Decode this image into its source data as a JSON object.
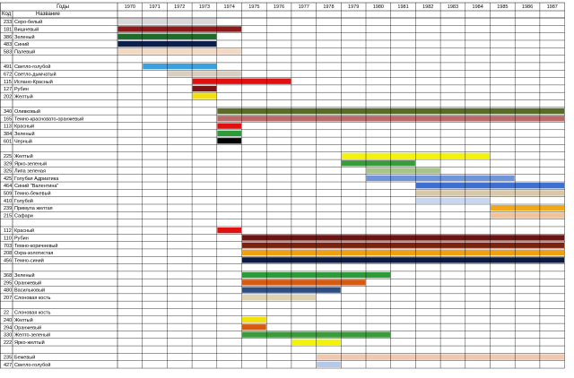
{
  "header": {
    "years_label": "Годы",
    "code_label": "Код",
    "name_label": "Название"
  },
  "years": [
    "1970",
    "1971",
    "1972",
    "1973",
    "1974",
    "1975",
    "1976",
    "1977",
    "1978",
    "1979",
    "1980",
    "1981",
    "1982",
    "1983",
    "1984",
    "1985",
    "1986",
    "1987"
  ],
  "rows": [
    {
      "code": "233",
      "name": "Серо-белый",
      "color": "#d9d9d9",
      "start": 1970,
      "end": 1973
    },
    {
      "code": "181",
      "name": "Вишневый",
      "color": "#8b1a1a",
      "start": 1970,
      "end": 1974
    },
    {
      "code": "386",
      "name": "Зеленый",
      "color": "#1e6b2a",
      "start": 1970,
      "end": 1973
    },
    {
      "code": "483",
      "name": "Синий",
      "color": "#0d1f4d",
      "start": 1970,
      "end": 1973
    },
    {
      "code": "583",
      "name": "Палевый",
      "color": "#f3d9c4",
      "start": 1970,
      "end": 1974
    },
    {
      "code": "",
      "name": ""
    },
    {
      "code": "491",
      "name": "Светло-голубой",
      "color": "#3aa0e0",
      "start": 1971,
      "end": 1973
    },
    {
      "code": "672",
      "name": "Светло-дымчатый",
      "color": "#d8cfc0",
      "start": 1972,
      "end": 1974
    },
    {
      "code": "115",
      "name": "Испано-Красный",
      "color": "#e01010",
      "start": 1973,
      "end": 1976
    },
    {
      "code": "127",
      "name": "Рубин",
      "color": "#7a1414",
      "start": 1973,
      "end": 1973
    },
    {
      "code": "202",
      "name": "Желтый",
      "color": "#f2e20a",
      "start": 1973,
      "end": 1973
    },
    {
      "code": "",
      "name": ""
    },
    {
      "code": "340",
      "name": "Оливковый",
      "color": "#5b6b2a",
      "start": 1974,
      "end": 1987
    },
    {
      "code": "165",
      "name": "Темно-красновато-оранжевый",
      "color": "#b96a6a",
      "start": 1974,
      "end": 1987
    },
    {
      "code": "113",
      "name": "Красный",
      "color": "#e01010",
      "start": 1974,
      "end": 1974
    },
    {
      "code": "384",
      "name": "Зеленый",
      "color": "#2e9b3a",
      "start": 1974,
      "end": 1974
    },
    {
      "code": "601",
      "name": "Черный",
      "color": "#000000",
      "start": 1974,
      "end": 1974
    },
    {
      "code": "",
      "name": ""
    },
    {
      "code": "225",
      "name": "Желтый",
      "color": "#f2f20a",
      "start": 1979,
      "end": 1984
    },
    {
      "code": "329",
      "name": "Ярко-зеленый",
      "color": "#3a9b3a",
      "start": 1979,
      "end": 1981
    },
    {
      "code": "325",
      "name": "Липа зеленая",
      "color": "#a9c48a",
      "start": 1980,
      "end": 1982
    },
    {
      "code": "425",
      "name": "Голубая Адриатика",
      "color": "#6f95d8",
      "start": 1980,
      "end": 1985
    },
    {
      "code": "464",
      "name": "Синий \"Валентина\"",
      "color": "#3c6fd0",
      "start": 1982,
      "end": 1987
    },
    {
      "code": "509",
      "name": "Темно-бежевый",
      "color": "#d9c8a8",
      "start": 1982,
      "end": 1987
    },
    {
      "code": "410",
      "name": "Голубой",
      "color": "#c9d6f0",
      "start": 1982,
      "end": 1984
    },
    {
      "code": "239",
      "name": "Примула желтая",
      "color": "#f0a818",
      "start": 1985,
      "end": 1987
    },
    {
      "code": "215",
      "name": "Сафари",
      "color": "#f0c49a",
      "start": 1985,
      "end": 1987
    },
    {
      "code": "",
      "name": ""
    },
    {
      "code": "112",
      "name": "Красный",
      "color": "#e01010",
      "start": 1974,
      "end": 1974
    },
    {
      "code": "110",
      "name": "Рубин",
      "color": "#6b1414",
      "start": 1975,
      "end": 1987
    },
    {
      "code": "703",
      "name": "Темно-коричневый",
      "color": "#7a2410",
      "start": 1975,
      "end": 1987
    },
    {
      "code": "208",
      "name": "Охра-золотистая",
      "color": "#f0a010",
      "start": 1975,
      "end": 1987
    },
    {
      "code": "456",
      "name": "Темно-синий",
      "color": "#0d1a40",
      "start": 1975,
      "end": 1987
    },
    {
      "code": "",
      "name": ""
    },
    {
      "code": "368",
      "name": "Зеленый",
      "color": "#2e9b3a",
      "start": 1975,
      "end": 1980
    },
    {
      "code": "295",
      "name": "Оранжевый",
      "color": "#d85a10",
      "start": 1975,
      "end": 1979
    },
    {
      "code": "480",
      "name": "Васильковый",
      "color": "#2e4d80",
      "start": 1975,
      "end": 1978
    },
    {
      "code": "207",
      "name": "Слоновая кость",
      "color": "#ded2b4",
      "start": 1975,
      "end": 1977
    },
    {
      "code": "",
      "name": ""
    },
    {
      "code": "22",
      "name": "Слоновая кость"
    },
    {
      "code": "240",
      "name": "Желтый",
      "color": "#f2e20a",
      "start": 1975,
      "end": 1975
    },
    {
      "code": "294",
      "name": "Оранжевый",
      "color": "#d85a10",
      "start": 1975,
      "end": 1975
    },
    {
      "code": "330",
      "name": "Желто-зеленый",
      "color": "#3a9b3a",
      "start": 1975,
      "end": 1980
    },
    {
      "code": "222",
      "name": "Ярко-желтый",
      "color": "#f2f20a",
      "start": 1977,
      "end": 1978
    },
    {
      "code": "",
      "name": ""
    },
    {
      "code": "235",
      "name": "Бежевый",
      "color": "#f0c8b0",
      "start": 1978,
      "end": 1987
    },
    {
      "code": "427",
      "name": "Светло-голубой",
      "color": "#b4c8e8",
      "start": 1978,
      "end": 1978
    }
  ]
}
